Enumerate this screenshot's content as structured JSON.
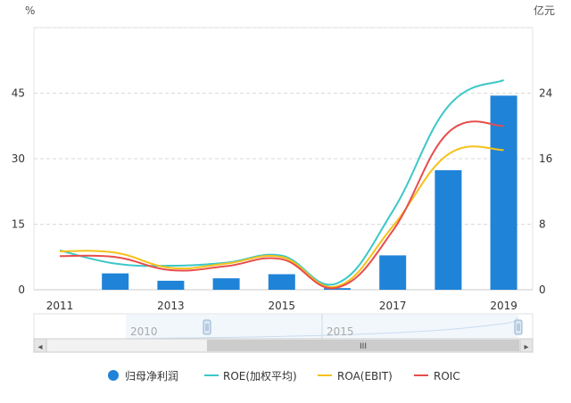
{
  "chart_data": {
    "type": "bar+line",
    "x": [
      "2011",
      "2012",
      "2013",
      "2014",
      "2015",
      "2016",
      "2017",
      "2018",
      "2019"
    ],
    "x_tick_labels": [
      "2011",
      "2013",
      "2015",
      "2017",
      "2019"
    ],
    "left_axis": {
      "unit": "%",
      "ylim": [
        0,
        60
      ],
      "ticks": [
        "0",
        "15",
        "30",
        "45"
      ]
    },
    "right_axis": {
      "unit": "亿元",
      "ylim": [
        0,
        32
      ],
      "ticks": [
        "0",
        "8",
        "16",
        "24"
      ]
    },
    "grid": true,
    "legend_position": "bottom",
    "series": [
      {
        "name": "归母净利润",
        "kind": "bar",
        "axis": "right",
        "color": "#1f83d8",
        "values": [
          null,
          2.0,
          1.1,
          1.4,
          1.9,
          0.2,
          4.2,
          14.6,
          23.7
        ]
      },
      {
        "name": "ROE(加权平均)",
        "kind": "line",
        "axis": "left",
        "color": "#3cc7c9",
        "values": [
          9.0,
          6.0,
          5.5,
          6.2,
          7.8,
          1.5,
          18.0,
          42.0,
          48.0
        ]
      },
      {
        "name": "ROA(EBIT)",
        "kind": "line",
        "axis": "left",
        "color": "#f5c11a",
        "values": [
          8.8,
          8.5,
          5.0,
          6.0,
          7.5,
          0.8,
          14.5,
          31.0,
          32.0
        ]
      },
      {
        "name": "ROIC",
        "kind": "line",
        "axis": "left",
        "color": "#e84d4d",
        "values": [
          7.7,
          7.5,
          4.5,
          5.4,
          7.0,
          0.5,
          13.5,
          36.0,
          37.5
        ]
      }
    ]
  },
  "navigator": {
    "labels": [
      "2010",
      "2015"
    ],
    "scrollbar_grip": "III",
    "arrow_left": "◂",
    "arrow_right": "▸"
  }
}
